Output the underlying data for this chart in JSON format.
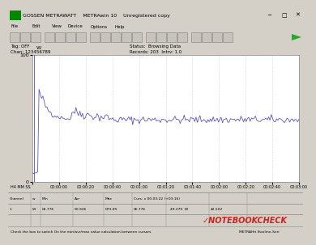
{
  "title": "GOSSEN METRAWATT    METRAwin 10    Unregistered copy",
  "tag": "Tag: OFF",
  "chan": "Chan: 123456789",
  "status": "Status:  Browsing Data",
  "records": "Records: 203  Intrv: 1.0",
  "y_label": "W",
  "y_min": 0,
  "y_max": 100,
  "x_ticks": [
    "00:00:00",
    "00:00:20",
    "00:00:40",
    "00:01:00",
    "00:01:20",
    "00:01:40",
    "00:02:00",
    "00:02:20",
    "00:02:40",
    "00:03:00"
  ],
  "x_label_left": "H4 MM SS",
  "line_color": "#5555cc",
  "bg_color": "#d4d0c8",
  "plot_bg": "#ffffff",
  "grid_color": "#b0b0c0",
  "peak_value": 73,
  "steady_value": 49,
  "min_val": "06.776",
  "avg_val": "50.926",
  "max_val": "073.09",
  "cur_x": "x 00:03:22 (+03:16)",
  "cur_val1": "06.776",
  "cur_val2": "49.279",
  "cur_unit": "W",
  "cur_val3": "42.502",
  "channel": "1",
  "ch_unit": "W",
  "nb_check_color": "#cc2222",
  "titlebar_bg": "#d4d0c8",
  "titlebar_text_color": "#000000",
  "menu_bg": "#d4d0c8",
  "white": "#ffffff",
  "gray": "#808080"
}
